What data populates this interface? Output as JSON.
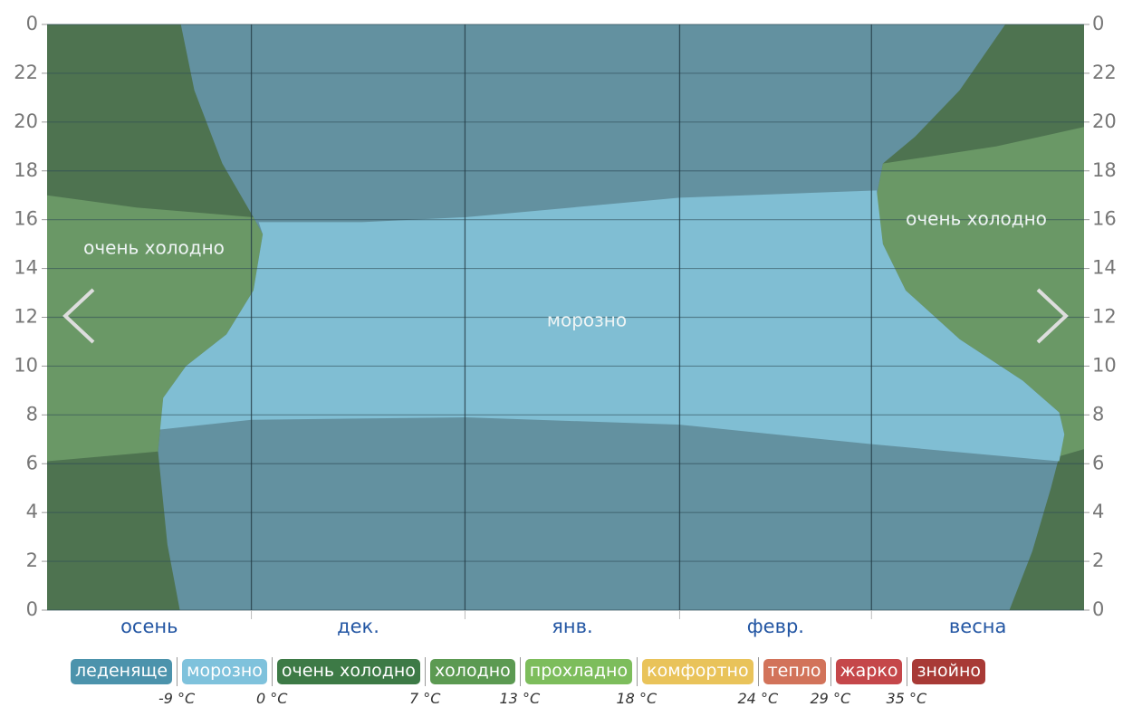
{
  "chart_data": {
    "type": "area",
    "categories": [
      "осень",
      "дек.",
      "янв.",
      "февр.",
      "весна"
    ],
    "xlim": [
      0,
      100
    ],
    "xticks": [
      19.7,
      40.3,
      61.0,
      79.5
    ],
    "ylim": [
      0,
      24
    ],
    "yticks": [
      {
        "value": 24,
        "label": "0"
      },
      22,
      20,
      18,
      16,
      14,
      12,
      10,
      8,
      6,
      4,
      2,
      0
    ],
    "grid": true,
    "areas": [
      {
        "color": "#4e7350",
        "x": [
          0,
          100,
          100,
          0
        ],
        "y": [
          0,
          0,
          24,
          24
        ]
      },
      {
        "color": "#6a9866",
        "x": [
          0,
          8.6,
          19.9,
          20.8,
          19.9,
          17.3,
          13.4,
          11.2,
          10.7,
          0
        ],
        "y": [
          17.0,
          16.5,
          16.1,
          15.4,
          13.1,
          11.3,
          10.0,
          8.7,
          6.5,
          6.1
        ]
      },
      {
        "color": "#6a9866",
        "x": [
          100,
          91.5,
          80.6,
          80.0,
          80.6,
          82.8,
          88.0,
          94.1,
          97.6,
          98.1,
          97.6,
          100
        ],
        "y": [
          19.8,
          19.0,
          18.3,
          17.0,
          15.0,
          13.1,
          11.1,
          9.4,
          8.1,
          7.2,
          6.3,
          6.6
        ]
      },
      {
        "color": "#6391a0",
        "x": [
          12.9,
          92.4,
          88.0,
          83.7,
          80.6,
          80.0,
          80.6,
          82.8,
          88.0,
          94.1,
          97.6,
          98.1,
          97.6,
          96.8,
          95.0,
          92.8,
          12.8,
          11.6,
          10.7,
          11.2,
          13.4,
          17.3,
          19.9,
          20.8,
          19.9,
          16.9,
          14.2
        ],
        "y": [
          24,
          24,
          21.3,
          19.4,
          18.3,
          17.0,
          15.0,
          13.1,
          11.1,
          9.4,
          8.1,
          7.2,
          6.3,
          5.0,
          2.4,
          0,
          0,
          2.7,
          6.5,
          8.7,
          10.0,
          11.3,
          13.1,
          15.4,
          16.1,
          18.3,
          21.3
        ]
      },
      {
        "color": "#80bed3",
        "x": [
          20.4,
          30.4,
          40.3,
          61.0,
          80.0,
          80.6,
          82.8,
          88.0,
          94.1,
          97.6,
          98.1,
          97.6,
          79.5,
          61.0,
          40.3,
          19.7,
          10.9,
          11.2,
          13.4,
          17.3,
          19.9,
          20.8
        ],
        "y": [
          15.9,
          15.9,
          16.1,
          16.9,
          17.2,
          15.0,
          13.1,
          11.1,
          9.4,
          8.1,
          7.2,
          6.1,
          6.8,
          7.6,
          7.9,
          7.8,
          7.4,
          8.7,
          10.0,
          11.3,
          13.1,
          15.4
        ]
      }
    ],
    "annotations": [
      "очень холодно",
      "морозно",
      "очень холодно"
    ],
    "legend": {
      "items": [
        {
          "label": "леденяще",
          "color": "#4c93ac"
        },
        {
          "label": "морозно",
          "color": "#7fc2dc"
        },
        {
          "label": "очень холодно",
          "color": "#3d7a46"
        },
        {
          "label": "холодно",
          "color": "#5c9a52"
        },
        {
          "label": "прохладно",
          "color": "#7dbd5c"
        },
        {
          "label": "комфортно",
          "color": "#e9c35a"
        },
        {
          "label": "тепло",
          "color": "#d2735a"
        },
        {
          "label": "жарко",
          "color": "#c5474a"
        },
        {
          "label": "знойно",
          "color": "#a83a36"
        }
      ],
      "thresholds": [
        "-9 °C",
        "0 °C",
        "7 °C",
        "13 °C",
        "18 °C",
        "24 °C",
        "29 °C",
        "35 °C"
      ]
    }
  }
}
